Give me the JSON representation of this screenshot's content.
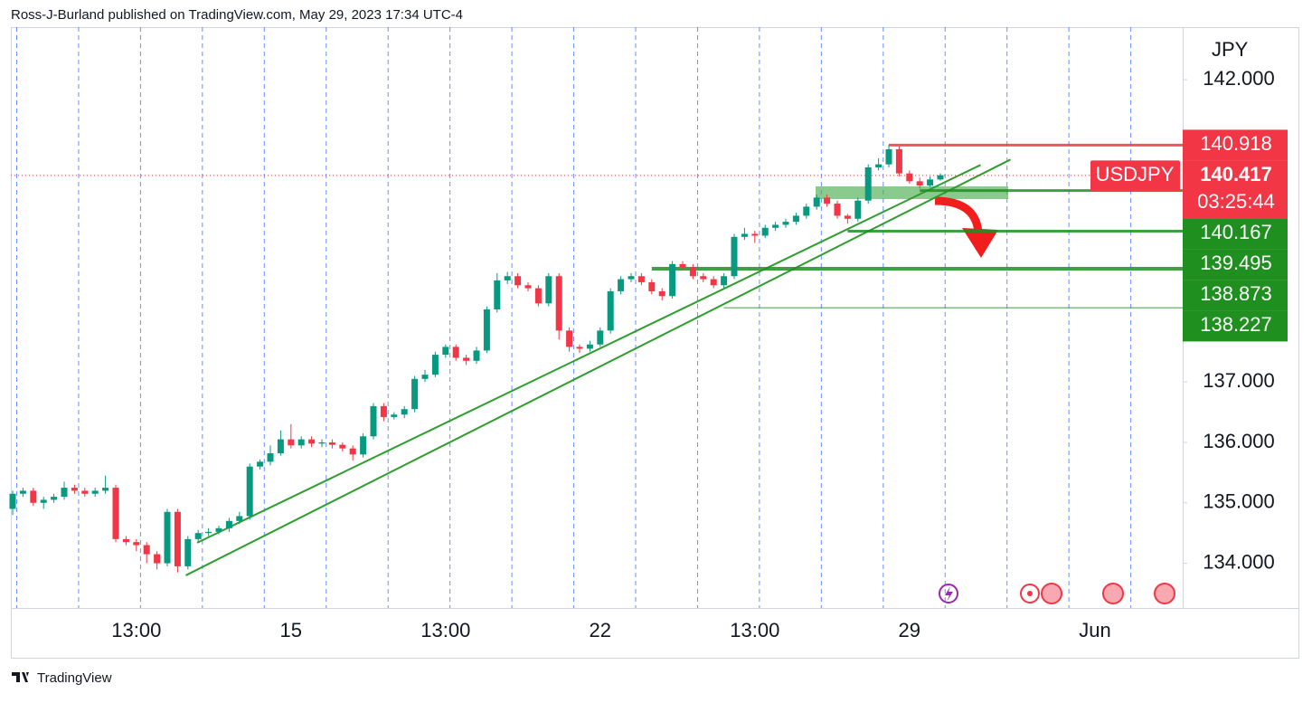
{
  "attribution": "Ross-J-Burland published on TradingView.com, May 29, 2023 17:34 UTC-4",
  "footer": "TradingView",
  "chart_data": {
    "type": "candlestick",
    "title": "USDJPY",
    "currency": "JPY",
    "categories": [
      null,
      null,
      null,
      null,
      null,
      null,
      null,
      null,
      null,
      null,
      null,
      null,
      "13:00",
      null,
      null,
      null,
      null,
      null,
      null,
      null,
      null,
      null,
      null,
      null,
      null,
      null,
      null,
      "15",
      null,
      null,
      null,
      null,
      null,
      null,
      null,
      null,
      null,
      null,
      null,
      null,
      null,
      null,
      "13:00",
      null,
      null,
      null,
      null,
      null,
      null,
      null,
      null,
      null,
      null,
      null,
      null,
      null,
      null,
      "22",
      null,
      null,
      null,
      null,
      null,
      null,
      null,
      null,
      null,
      null,
      null,
      null,
      null,
      null,
      "13:00",
      null,
      null,
      null,
      null,
      null,
      null,
      null,
      null,
      null,
      null,
      null,
      null,
      null,
      null,
      "29",
      null,
      null,
      null,
      null,
      null,
      null,
      null,
      null,
      null,
      null,
      null,
      null,
      null,
      null,
      null,
      null,
      null,
      "Jun"
    ],
    "open": [
      134.9,
      135.15,
      135.2,
      135.0,
      135.05,
      135.1,
      135.25,
      135.2,
      135.15,
      135.2,
      135.25,
      134.4,
      134.35,
      134.3,
      134.15,
      134.0,
      134.85,
      133.95,
      134.4,
      134.5,
      134.52,
      134.58,
      134.7,
      134.78,
      135.6,
      135.68,
      135.82,
      136.05,
      135.95,
      136.05,
      135.98,
      136.0,
      135.96,
      135.9,
      135.8,
      136.1,
      136.6,
      136.42,
      136.46,
      136.55,
      137.05,
      137.12,
      137.45,
      137.58,
      137.4,
      137.35,
      137.52,
      138.2,
      138.68,
      138.75,
      138.6,
      138.55,
      138.3,
      138.75,
      137.85,
      137.58,
      137.55,
      137.62,
      137.85,
      138.5,
      138.7,
      138.75,
      138.65,
      138.5,
      138.42,
      138.95,
      138.9,
      138.75,
      138.7,
      138.6,
      138.75,
      139.4,
      139.45,
      139.42,
      139.55,
      139.6,
      139.65,
      139.75,
      139.9,
      140.05,
      139.95,
      139.75,
      139.7,
      140.0,
      140.55,
      140.6,
      140.85,
      140.45,
      140.32,
      140.25,
      140.35,
      null,
      null,
      null,
      null,
      null,
      null,
      null,
      null,
      null,
      null,
      null,
      null,
      null,
      null,
      null
    ],
    "high": [
      135.2,
      135.25,
      135.25,
      135.1,
      135.15,
      135.35,
      135.3,
      135.25,
      135.25,
      135.45,
      135.3,
      134.45,
      134.4,
      134.35,
      134.2,
      134.9,
      134.9,
      134.45,
      134.55,
      134.58,
      134.62,
      134.75,
      134.85,
      135.65,
      135.72,
      135.95,
      136.2,
      136.3,
      136.1,
      136.1,
      136.05,
      136.05,
      136.0,
      135.95,
      136.15,
      136.65,
      136.65,
      136.5,
      136.6,
      137.1,
      137.2,
      137.5,
      137.62,
      137.62,
      137.45,
      137.58,
      138.25,
      138.8,
      138.82,
      138.8,
      138.65,
      138.6,
      138.8,
      138.8,
      137.9,
      137.62,
      137.68,
      137.9,
      138.55,
      138.75,
      138.8,
      138.8,
      138.7,
      138.55,
      139.0,
      139.0,
      138.95,
      138.8,
      138.75,
      138.8,
      139.45,
      139.55,
      139.5,
      139.6,
      139.65,
      139.7,
      139.8,
      139.95,
      140.1,
      140.1,
      140.0,
      139.78,
      140.05,
      140.6,
      140.7,
      140.92,
      140.9,
      140.5,
      140.38,
      140.4,
      140.45,
      null,
      null,
      null,
      null,
      null,
      null,
      null,
      null,
      null,
      null,
      null,
      null,
      null,
      null,
      null
    ],
    "low": [
      134.8,
      135.1,
      134.95,
      134.9,
      135.0,
      135.05,
      135.15,
      135.1,
      135.1,
      135.15,
      134.35,
      134.3,
      134.2,
      134.0,
      133.9,
      133.95,
      133.85,
      133.9,
      134.35,
      134.45,
      134.48,
      134.52,
      134.65,
      134.72,
      135.55,
      135.62,
      135.78,
      135.9,
      135.9,
      135.92,
      135.92,
      135.9,
      135.85,
      135.7,
      135.75,
      136.05,
      136.35,
      136.38,
      136.4,
      136.5,
      137.0,
      137.08,
      137.4,
      137.35,
      137.28,
      137.3,
      137.48,
      138.15,
      138.62,
      138.55,
      138.5,
      138.25,
      138.25,
      137.7,
      137.5,
      137.48,
      137.5,
      137.58,
      137.8,
      138.45,
      138.65,
      138.6,
      138.45,
      138.35,
      138.38,
      138.85,
      138.7,
      138.65,
      138.55,
      138.55,
      138.7,
      139.35,
      139.3,
      139.38,
      139.5,
      139.55,
      139.6,
      139.7,
      139.85,
      139.9,
      139.7,
      139.62,
      139.65,
      139.95,
      140.5,
      140.55,
      140.4,
      140.28,
      140.2,
      140.22,
      140.33,
      null,
      null,
      null,
      null,
      null,
      null,
      null,
      null,
      null,
      null,
      null,
      null,
      null,
      null,
      null
    ],
    "close": [
      135.15,
      135.2,
      135.0,
      135.05,
      135.1,
      135.25,
      135.2,
      135.15,
      135.2,
      135.25,
      134.4,
      134.35,
      134.3,
      134.15,
      134.0,
      134.85,
      133.95,
      134.4,
      134.5,
      134.52,
      134.58,
      134.7,
      134.78,
      135.6,
      135.68,
      135.82,
      136.05,
      135.95,
      136.05,
      135.98,
      136.0,
      135.96,
      135.9,
      135.8,
      136.1,
      136.6,
      136.42,
      136.46,
      136.55,
      137.05,
      137.12,
      137.45,
      137.58,
      137.4,
      137.35,
      137.52,
      138.2,
      138.68,
      138.75,
      138.6,
      138.55,
      138.3,
      138.75,
      137.85,
      137.58,
      137.55,
      137.62,
      137.85,
      138.5,
      138.7,
      138.75,
      138.65,
      138.5,
      138.42,
      138.95,
      138.9,
      138.75,
      138.7,
      138.6,
      138.75,
      139.4,
      139.45,
      139.42,
      139.55,
      139.6,
      139.65,
      139.75,
      139.9,
      140.05,
      139.95,
      139.75,
      139.7,
      140.0,
      140.55,
      140.6,
      140.85,
      140.45,
      140.32,
      140.25,
      140.35,
      140.42,
      null,
      null,
      null,
      null,
      null,
      null,
      null,
      null,
      null,
      null,
      null,
      null,
      null,
      null,
      null
    ],
    "up_color": "#089981",
    "down_color": "#f23645",
    "ylim": [
      133.26,
      142.87
    ],
    "yticks": [
      {
        "value": 134,
        "label": "134.000"
      },
      {
        "value": 135,
        "label": "135.000"
      },
      {
        "value": 136,
        "label": "136.000"
      },
      {
        "value": 137,
        "label": "137.000"
      },
      {
        "value": 142,
        "label": "142.000"
      }
    ],
    "last_price": 140.417,
    "countdown": "03:25:44",
    "levels": [
      {
        "value": 140.918,
        "color": "#f23645",
        "start": 85,
        "width": 3
      },
      {
        "value": 140.167,
        "color": "#1f8f1f",
        "start": 88,
        "width": 3
      },
      {
        "value": 139.495,
        "color": "#1f8f1f",
        "start": 81,
        "width": 3
      },
      {
        "value": 138.873,
        "color": "#1f8f1f",
        "start": 62,
        "width": 4
      },
      {
        "value": 138.227,
        "color": "#1f8f1f",
        "start": 69,
        "width": 1
      }
    ],
    "trendlines": [
      {
        "x": [
          16.8,
          96.8
        ],
        "y": [
          133.8,
          140.68
        ],
        "color": "#2e9e2e"
      },
      {
        "x": [
          17.9,
          93.9
        ],
        "y": [
          134.34,
          140.59
        ],
        "color": "#2e9e2e"
      }
    ]
  }
}
